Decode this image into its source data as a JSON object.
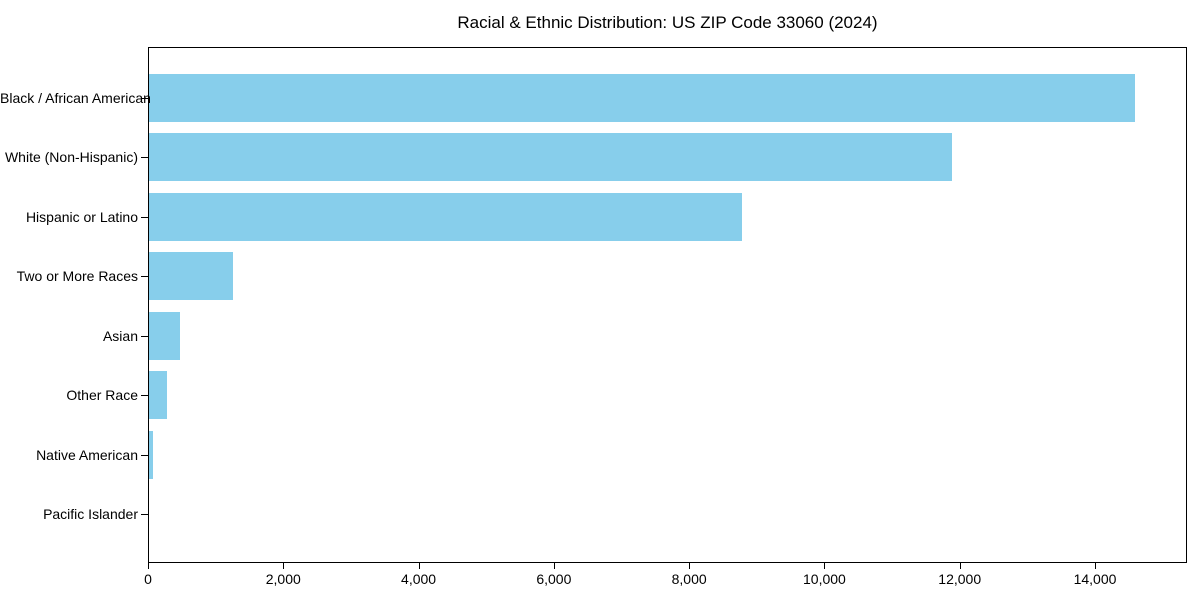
{
  "chart_data": {
    "type": "bar",
    "orientation": "horizontal",
    "title": "Racial & Ethnic Distribution: US ZIP Code 33060 (2024)",
    "categories": [
      "Black / African American",
      "White (Non-Hispanic)",
      "Hispanic or Latino",
      "Two or More Races",
      "Asian",
      "Other Race",
      "Native American",
      "Pacific Islander"
    ],
    "values": [
      14600,
      11900,
      8780,
      1240,
      460,
      260,
      60,
      0
    ],
    "xlabel": "",
    "ylabel": "",
    "xlim": [
      0,
      15360
    ],
    "x_ticks": [
      0,
      2000,
      4000,
      6000,
      8000,
      10000,
      12000,
      14000
    ],
    "x_tick_labels": [
      "0",
      "2,000",
      "4,000",
      "6,000",
      "8,000",
      "10,000",
      "12,000",
      "14,000"
    ],
    "bar_color": "#87CEEB",
    "background_color": "#ffffff",
    "text_color": "#000000",
    "grid": false,
    "legend": null,
    "frame": "full-box"
  }
}
